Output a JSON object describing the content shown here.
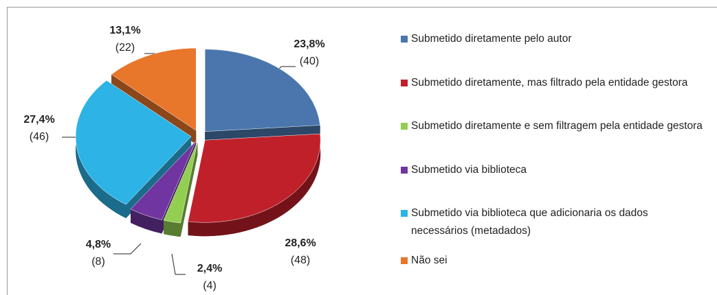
{
  "chart_data": {
    "type": "pie3d",
    "categories": [
      "Submetido diretamente pelo autor",
      "Submetido diretamente, mas filtrado pela entidade gestora",
      "Submetido diretamente e sem filtragem pela entidade gestora",
      "Submetido via biblioteca",
      "Submetido via biblioteca que adicionaria os dados necessários (metadados)",
      "Não sei"
    ],
    "values": [
      23.8,
      28.6,
      2.4,
      4.8,
      27.4,
      13.1
    ],
    "value_labels": [
      "23,8%",
      "28,6%",
      "2,4%",
      "4,8%",
      "27,4%",
      "13,1%"
    ],
    "counts": [
      40,
      48,
      4,
      8,
      46,
      22
    ],
    "count_labels": [
      "(40)",
      "(48)",
      "(4)",
      "(8)",
      "(46)",
      "(22)"
    ],
    "colors": [
      "#4a76ad",
      "#c0202a",
      "#92cf50",
      "#7035a0",
      "#2db3e6",
      "#e8762b"
    ],
    "legend": "right"
  }
}
